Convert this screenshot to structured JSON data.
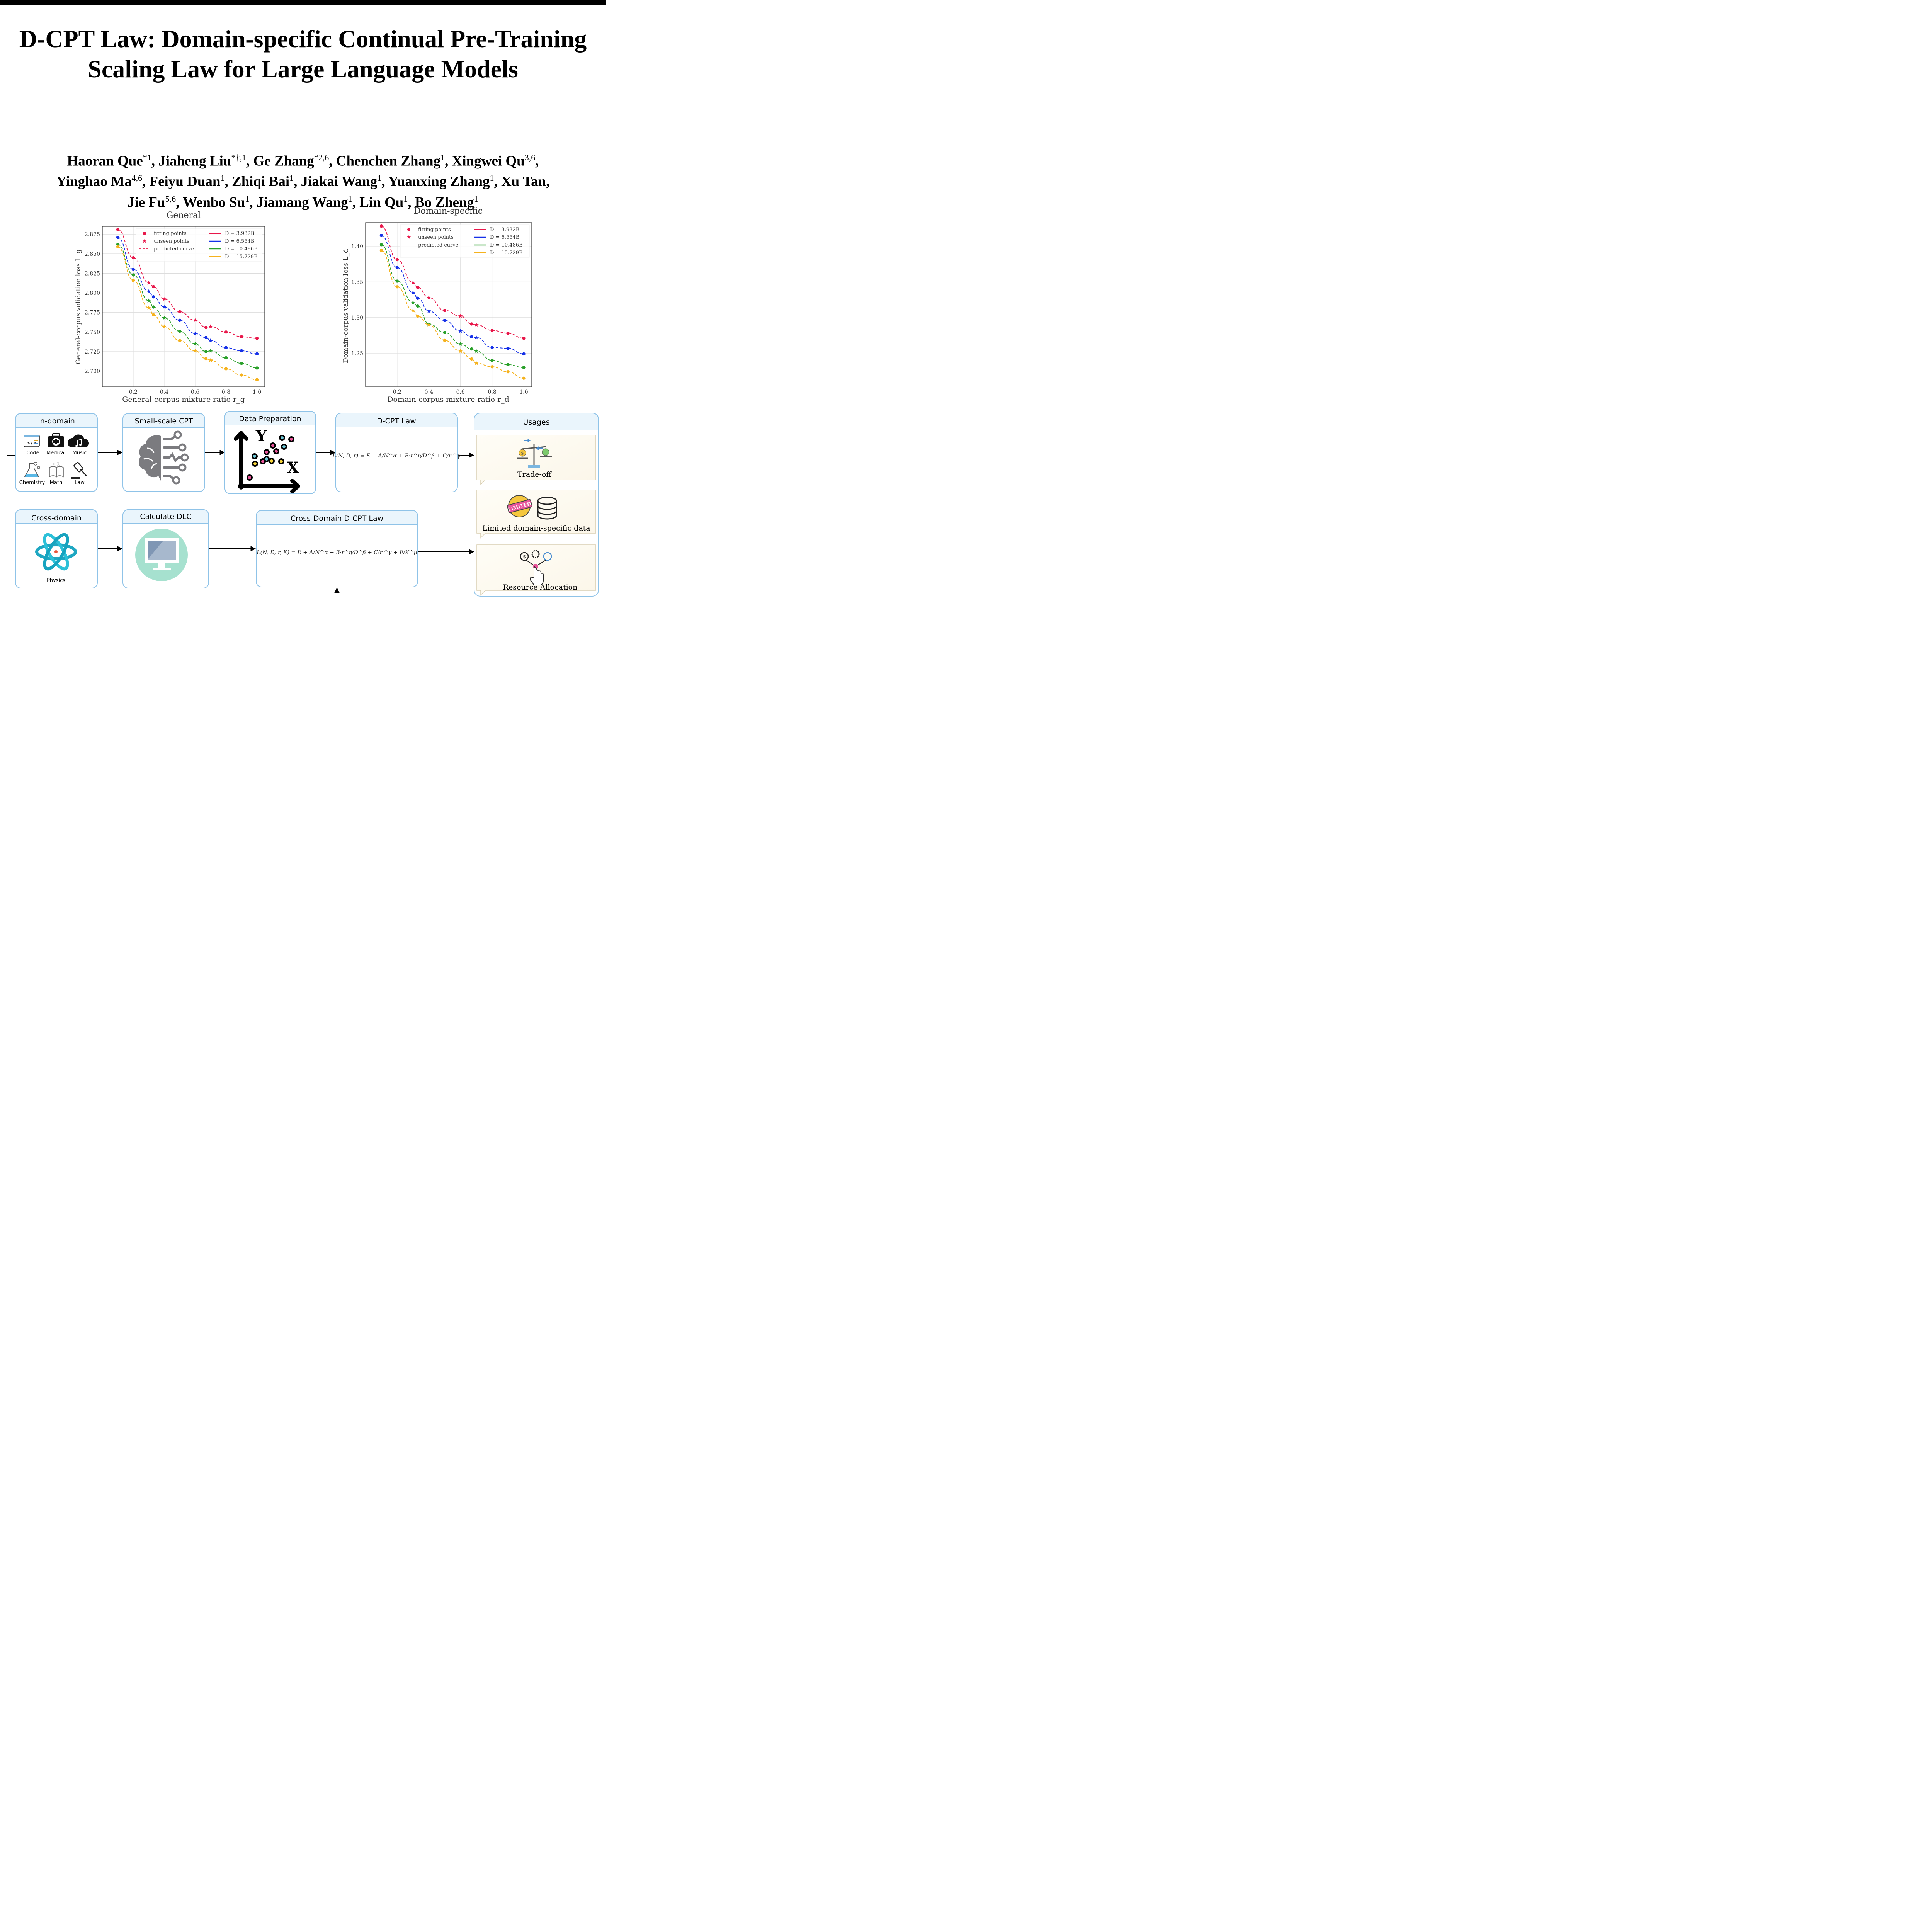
{
  "paper": {
    "title_line1": "D-CPT Law: Domain-specific Continual Pre-Training",
    "title_line2": "Scaling Law for Large Language Models",
    "authors": [
      {
        "name": "Haoran Que",
        "sup": "*1"
      },
      {
        "name": "Jiaheng Liu",
        "sup": "*†,1"
      },
      {
        "name": "Ge Zhang",
        "sup": "*2,6"
      },
      {
        "name": "Chenchen Zhang",
        "sup": "1"
      },
      {
        "name": "Xingwei Qu",
        "sup": "3,6"
      },
      {
        "name": "Yinghao Ma",
        "sup": "4,6"
      },
      {
        "name": "Feiyu Duan",
        "sup": "1"
      },
      {
        "name": "Zhiqi Bai",
        "sup": "1"
      },
      {
        "name": "Jiakai Wang",
        "sup": "1"
      },
      {
        "name": "Yuanxing Zhang",
        "sup": "1"
      },
      {
        "name": "Xu Tan",
        "sup": ""
      },
      {
        "name": "Jie Fu",
        "sup": "5,6"
      },
      {
        "name": "Wenbo Su",
        "sup": "1"
      },
      {
        "name": "Jiamang Wang",
        "sup": "1"
      },
      {
        "name": "Lin Qu",
        "sup": "1"
      },
      {
        "name": "Bo Zheng",
        "sup": "1"
      }
    ]
  },
  "legend": {
    "fitting": "fitting points",
    "unseen": "unseen points",
    "predicted": "predicted curve"
  },
  "chart_data": [
    {
      "type": "line",
      "title": "General",
      "xlabel": "General-corpus mixture ratio r_g",
      "ylabel": "General-corpus validation loss L_g",
      "xlim": [
        0.0,
        1.05
      ],
      "ylim": [
        2.68,
        2.885
      ],
      "xticks": [
        "0.2",
        "0.4",
        "0.6",
        "0.8",
        "1.0"
      ],
      "yticks": [
        "2.700",
        "2.725",
        "2.750",
        "2.775",
        "2.800",
        "2.825",
        "2.850",
        "2.875"
      ],
      "grid": true,
      "legend_position": "top-right",
      "x_fit": [
        0.1,
        0.2,
        0.33,
        0.5,
        0.67,
        0.8,
        0.9,
        1.0
      ],
      "x_unseen": [
        0.3,
        0.4,
        0.6,
        0.7
      ],
      "series": [
        {
          "name": "D = 3.932B",
          "color": "#e8174a",
          "fit": [
            2.881,
            2.845,
            2.808,
            2.776,
            2.756,
            2.75,
            2.744,
            2.742
          ],
          "unseen": [
            2.813,
            2.792,
            2.765,
            2.757
          ]
        },
        {
          "name": "D = 6.554B",
          "color": "#1530e8",
          "fit": [
            2.871,
            2.83,
            2.795,
            2.765,
            2.743,
            2.73,
            2.726,
            2.722
          ],
          "unseen": [
            2.802,
            2.782,
            2.748,
            2.739
          ]
        },
        {
          "name": "D = 10.486B",
          "color": "#2aa02a",
          "fit": [
            2.862,
            2.823,
            2.782,
            2.751,
            2.725,
            2.717,
            2.71,
            2.704
          ],
          "unseen": [
            2.79,
            2.768,
            2.735,
            2.726
          ]
        },
        {
          "name": "D = 15.729B",
          "color": "#f5b21d",
          "fit": [
            2.859,
            2.816,
            2.772,
            2.739,
            2.716,
            2.703,
            2.695,
            2.689
          ],
          "unseen": [
            2.781,
            2.757,
            2.726,
            2.714
          ]
        }
      ]
    },
    {
      "type": "line",
      "title": "Domain-specific",
      "xlabel": "Domain-corpus mixture ratio r_d",
      "ylabel": "Domain-corpus validation loss L_d",
      "xlim": [
        0.0,
        1.05
      ],
      "ylim": [
        1.203,
        1.433
      ],
      "xticks": [
        "0.2",
        "0.4",
        "0.6",
        "0.8",
        "1.0"
      ],
      "yticks": [
        "1.25",
        "1.30",
        "1.35",
        "1.40"
      ],
      "grid": true,
      "legend_position": "top-right",
      "x_fit": [
        0.1,
        0.2,
        0.33,
        0.5,
        0.67,
        0.8,
        0.9,
        1.0
      ],
      "x_unseen": [
        0.3,
        0.4,
        0.6,
        0.7
      ],
      "series": [
        {
          "name": "D = 3.932B",
          "color": "#e8174a",
          "fit": [
            1.428,
            1.381,
            1.342,
            1.31,
            1.291,
            1.282,
            1.278,
            1.271
          ],
          "unseen": [
            1.349,
            1.328,
            1.302,
            1.29
          ]
        },
        {
          "name": "D = 6.554B",
          "color": "#1530e8",
          "fit": [
            1.415,
            1.37,
            1.327,
            1.296,
            1.273,
            1.258,
            1.257,
            1.249
          ],
          "unseen": [
            1.335,
            1.309,
            1.281,
            1.272
          ]
        },
        {
          "name": "D = 10.486B",
          "color": "#2aa02a",
          "fit": [
            1.402,
            1.351,
            1.316,
            1.279,
            1.256,
            1.24,
            1.234,
            1.23
          ],
          "unseen": [
            1.321,
            1.291,
            1.263,
            1.253
          ]
        },
        {
          "name": "D = 15.729B",
          "color": "#f5b21d",
          "fit": [
            1.394,
            1.343,
            1.302,
            1.268,
            1.242,
            1.231,
            1.224,
            1.215
          ],
          "unseen": [
            1.31,
            1.29,
            1.253,
            1.236
          ]
        }
      ]
    }
  ],
  "flow": {
    "in_domain": {
      "title": "In-domain",
      "items": [
        "Code",
        "Medical",
        "Music",
        "Chemistry",
        "Math",
        "Law"
      ]
    },
    "small_cpt": {
      "title": "Small-scale CPT"
    },
    "data_prep": {
      "title": "Data Preparation",
      "axis_y": "Y",
      "axis_x": "X"
    },
    "dcpt_law": {
      "title": "D-CPT Law",
      "formula": "L(N, D, r) = E + A/N^α + B·r^η/D^β + C/r'^γ"
    },
    "usages": {
      "title": "Usages",
      "items": [
        "Trade-off",
        "Limited domain-specific data",
        "Resource Allocation"
      ],
      "stamp": "LIMITED"
    },
    "cross_domain": {
      "title": "Cross-domain",
      "item": "Physics"
    },
    "calc_dlc": {
      "title": "Calculate DLC"
    },
    "cross_law": {
      "title": "Cross-Domain D-CPT Law",
      "formula": "L(N, D, r, K) = E + A/N^α + B·r^η/D^β + C/r'^γ + F/K^μ"
    }
  }
}
